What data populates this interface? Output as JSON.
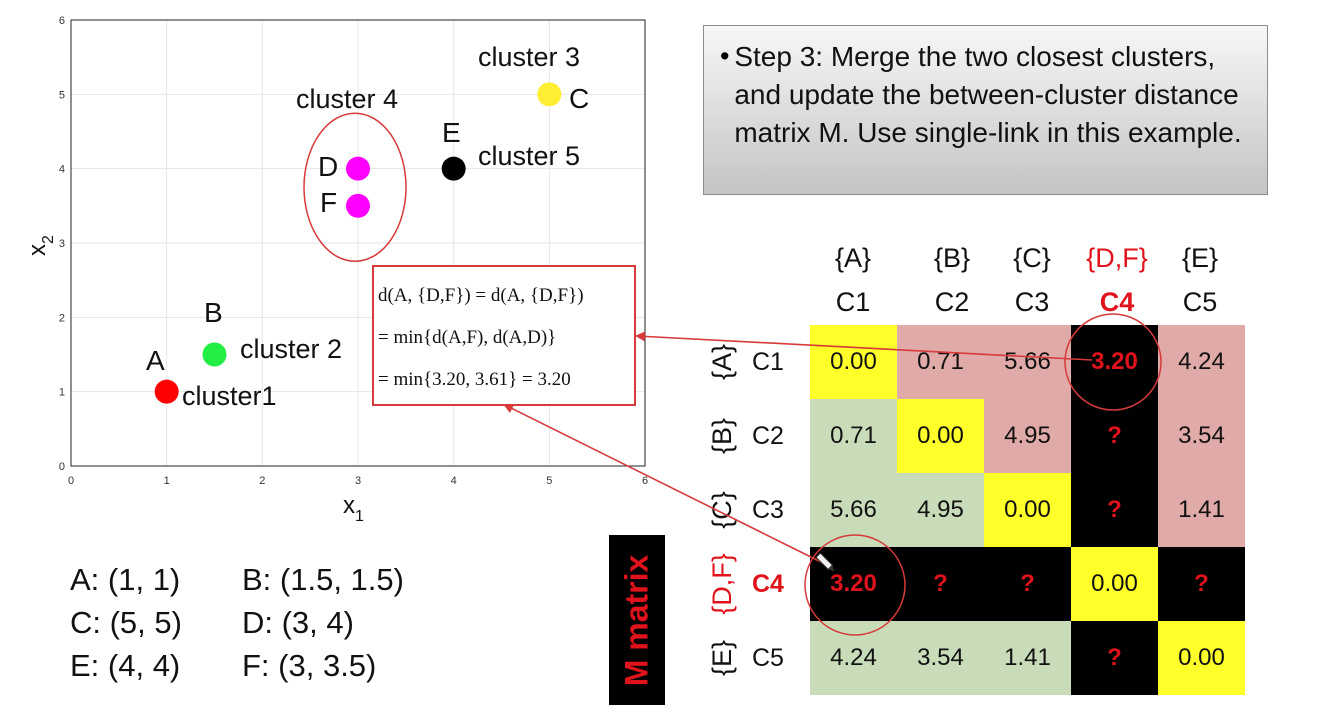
{
  "chart_data": {
    "type": "scatter",
    "xlabel": "x",
    "xlabel_sub": "1",
    "ylabel": "x",
    "ylabel_sub": "2",
    "xlim": [
      0,
      6
    ],
    "ylim": [
      0,
      6
    ],
    "xticks": [
      0,
      1,
      2,
      3,
      4,
      5,
      6
    ],
    "yticks": [
      0,
      1,
      2,
      3,
      4,
      5,
      6
    ],
    "grid": true,
    "points": [
      {
        "label": "A",
        "x": 1,
        "y": 1,
        "color": "#ff0000"
      },
      {
        "label": "B",
        "x": 1.5,
        "y": 1.5,
        "color": "#22ee44"
      },
      {
        "label": "C",
        "x": 5,
        "y": 5,
        "color": "#ffee33"
      },
      {
        "label": "D",
        "x": 3,
        "y": 4,
        "color": "#ff00ff"
      },
      {
        "label": "E",
        "x": 4,
        "y": 4,
        "color": "#000000"
      },
      {
        "label": "F",
        "x": 3,
        "y": 3.5,
        "color": "#ff00ff"
      }
    ],
    "cluster_labels": [
      "cluster1",
      "cluster 2",
      "cluster 3",
      "cluster 4",
      "cluster 5"
    ]
  },
  "coordinates": [
    [
      "A: (1, 1)",
      "B: (1.5, 1.5)"
    ],
    [
      "C: (5, 5)",
      "D: (3, 4)"
    ],
    [
      "E: (4, 4)",
      "F: (3, 3.5)"
    ]
  ],
  "step_box": {
    "bullet": "•",
    "text": "Step 3: Merge the two closest clusters, and update the between-cluster distance matrix M. Use single-link in this example."
  },
  "formula": {
    "line1": "d(A, {D,F}) = d(A, {D,F})",
    "line2": "= min{d(A,F), d(A,D)}",
    "line3": "= min{3.20, 3.61} = 3.20"
  },
  "matrix": {
    "label": "M matrix",
    "column_sets": [
      "{A}",
      "{B}",
      "{C}",
      "{D,F}",
      "{E}"
    ],
    "column_ids": [
      "C1",
      "C2",
      "C3",
      "C4",
      "C5"
    ],
    "row_sets": [
      "{A}",
      "{B}",
      "{C}",
      "{D,F}",
      "{E}"
    ],
    "row_ids": [
      "C1",
      "C2",
      "C3",
      "C4",
      "C5"
    ],
    "highlight_index": 3,
    "values": [
      [
        "0.00",
        "0.71",
        "5.66",
        "3.20",
        "4.24"
      ],
      [
        "0.71",
        "0.00",
        "4.95",
        "?",
        "3.54"
      ],
      [
        "5.66",
        "4.95",
        "0.00",
        "?",
        "1.41"
      ],
      [
        "3.20",
        "?",
        "?",
        "0.00",
        "?"
      ],
      [
        "4.24",
        "3.54",
        "1.41",
        "?",
        "0.00"
      ]
    ]
  },
  "colors": {
    "accent_red": "#e0121b",
    "diagonal": "#ffff2a",
    "upper": "#e0aaa8",
    "lower": "#c9dcb9"
  }
}
